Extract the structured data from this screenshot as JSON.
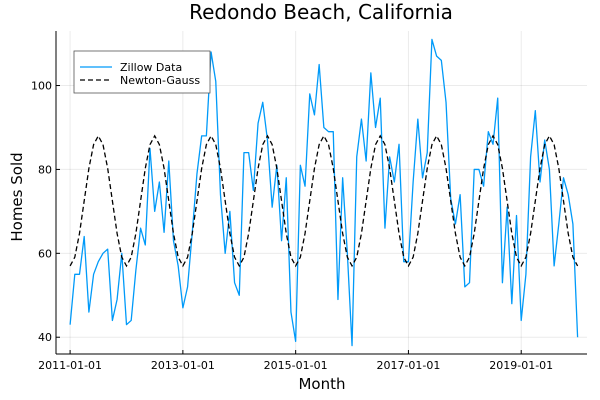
{
  "chart_data": {
    "type": "line",
    "title": "Redondo Beach, California",
    "xlabel": "Month",
    "ylabel": "Homes Sold",
    "x_start": "2011-01-01",
    "x_end": "2019-12-01",
    "xlim": [
      "2010-10-01",
      "2020-03-01"
    ],
    "ylim": [
      36,
      113
    ],
    "xticks": [
      "2011-01-01",
      "2013-01-01",
      "2015-01-01",
      "2017-01-01",
      "2019-01-01"
    ],
    "yticks": [
      40,
      60,
      80,
      100
    ],
    "grid": true,
    "legend_position": "top-left",
    "series": [
      {
        "name": "Zillow Data",
        "color": "#009af9",
        "dash": "solid",
        "values": [
          43,
          55,
          55,
          64,
          46,
          55,
          58,
          60,
          61,
          44,
          49,
          60,
          43,
          44,
          56,
          66,
          62,
          85,
          70,
          77,
          65,
          82,
          63,
          57,
          47,
          52,
          65,
          79,
          88,
          88,
          108,
          101,
          74,
          60,
          70,
          53,
          50,
          84,
          84,
          75,
          91,
          96,
          87,
          71,
          81,
          63,
          78,
          46,
          39,
          81,
          76,
          98,
          93,
          105,
          90,
          89,
          89,
          49,
          78,
          60,
          38,
          83,
          92,
          82,
          103,
          90,
          97,
          66,
          83,
          77,
          86,
          58,
          58,
          77,
          92,
          78,
          84,
          111,
          107,
          106,
          96,
          73,
          67,
          74,
          52,
          53,
          80,
          80,
          76,
          89,
          86,
          97,
          53,
          71,
          48,
          69,
          44,
          55,
          83,
          94,
          77,
          87,
          80,
          57,
          67,
          78,
          74,
          67,
          40
        ]
      },
      {
        "name": "Newton-Gauss",
        "color": "#000000",
        "dash": "dashed",
        "model": {
          "mean": 72.5,
          "amplitude": 15.5,
          "period_months": 12,
          "peak_month": 6
        }
      }
    ]
  }
}
